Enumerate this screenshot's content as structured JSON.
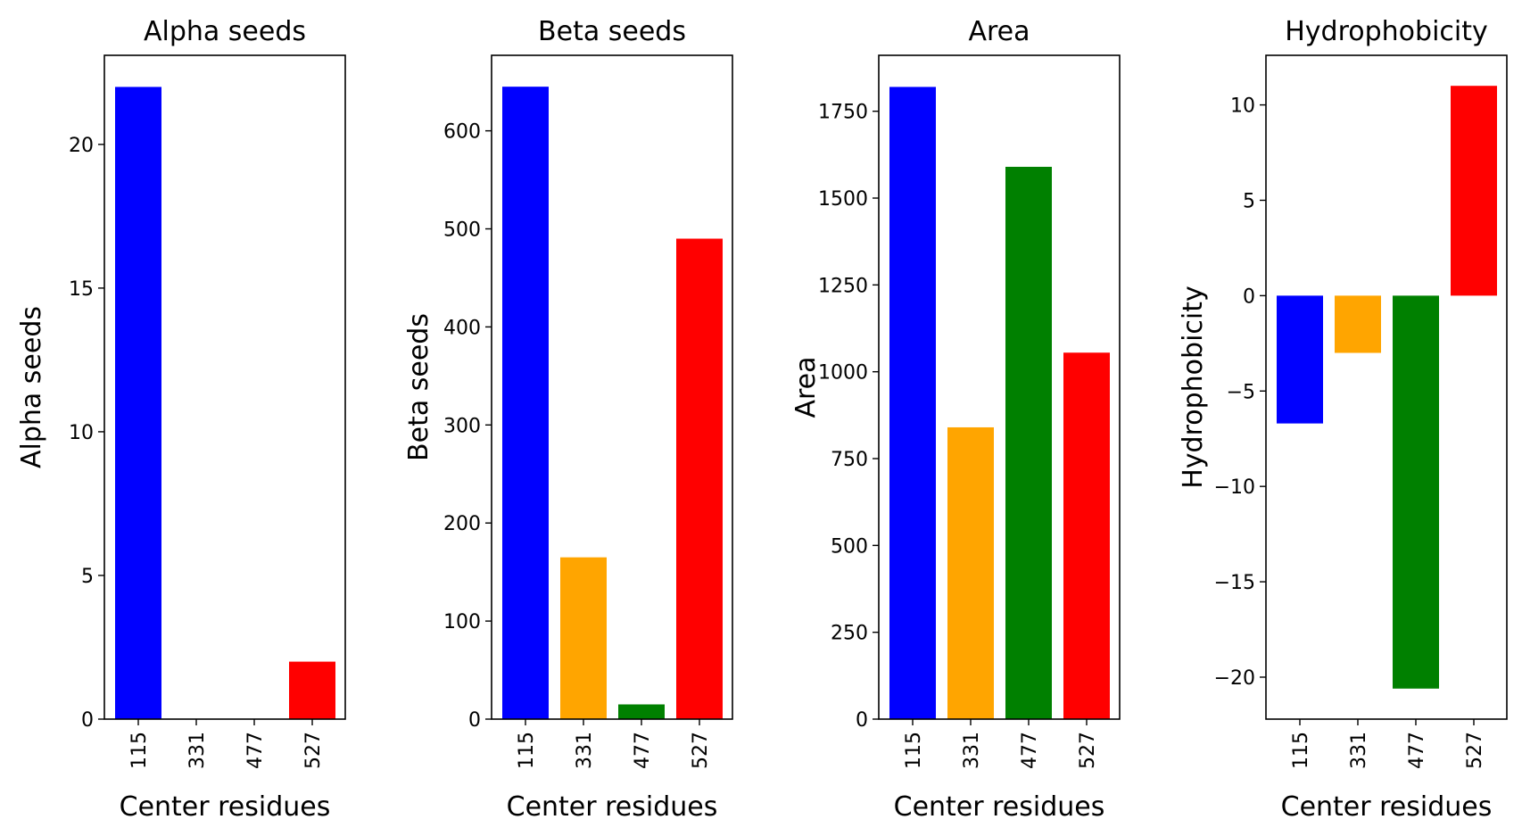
{
  "chart_data": [
    {
      "type": "bar",
      "title": "Alpha seeds",
      "xlabel": "Center residues",
      "ylabel": "Alpha seeds",
      "categories": [
        "115",
        "331",
        "477",
        "527"
      ],
      "values": [
        22,
        0,
        0,
        2
      ],
      "colors": [
        "#0000ff",
        "#ffa500",
        "#008000",
        "#ff0000"
      ],
      "ylim": [
        0,
        23.1
      ],
      "yticks": [
        0,
        5,
        10,
        15,
        20
      ],
      "ytick_labels": [
        "0",
        "5",
        "10",
        "15",
        "20"
      ],
      "grid": false
    },
    {
      "type": "bar",
      "title": "Beta seeds",
      "xlabel": "Center residues",
      "ylabel": "Beta seeds",
      "categories": [
        "115",
        "331",
        "477",
        "527"
      ],
      "values": [
        645,
        165,
        15,
        490
      ],
      "colors": [
        "#0000ff",
        "#ffa500",
        "#008000",
        "#ff0000"
      ],
      "ylim": [
        0,
        677
      ],
      "yticks": [
        0,
        100,
        200,
        300,
        400,
        500,
        600
      ],
      "ytick_labels": [
        "0",
        "100",
        "200",
        "300",
        "400",
        "500",
        "600"
      ],
      "grid": false
    },
    {
      "type": "bar",
      "title": "Area",
      "xlabel": "Center residues",
      "ylabel": "Area",
      "categories": [
        "115",
        "331",
        "477",
        "527"
      ],
      "values": [
        1820,
        840,
        1590,
        1055
      ],
      "colors": [
        "#0000ff",
        "#ffa500",
        "#008000",
        "#ff0000"
      ],
      "ylim": [
        0,
        1911
      ],
      "yticks": [
        0,
        250,
        500,
        750,
        1000,
        1250,
        1500,
        1750
      ],
      "ytick_labels": [
        "0",
        "250",
        "500",
        "750",
        "1000",
        "1250",
        "1500",
        "1750"
      ],
      "grid": false
    },
    {
      "type": "bar",
      "title": "Hydrophobicity",
      "xlabel": "Center residues",
      "ylabel": "Hydrophobicity",
      "categories": [
        "115",
        "331",
        "477",
        "527"
      ],
      "values": [
        -6.7,
        -3.0,
        -20.6,
        11.0
      ],
      "colors": [
        "#0000ff",
        "#ffa500",
        "#008000",
        "#ff0000"
      ],
      "ylim": [
        -22.2,
        12.6
      ],
      "yticks": [
        -20,
        -15,
        -10,
        -5,
        0,
        5,
        10
      ],
      "ytick_labels": [
        "−20",
        "−15",
        "−10",
        "−5",
        "0",
        "5",
        "10"
      ],
      "grid": false
    }
  ]
}
